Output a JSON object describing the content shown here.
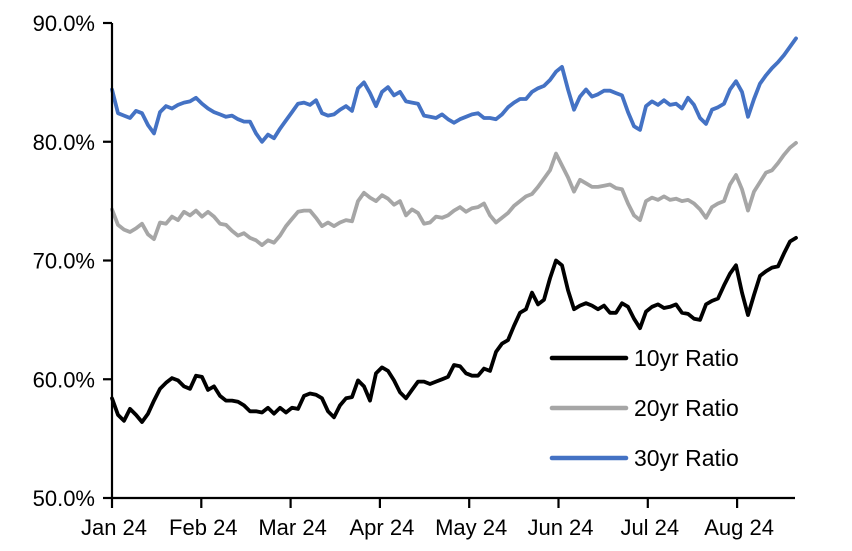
{
  "chart_data": {
    "type": "line",
    "title": "",
    "xlabel": "",
    "ylabel": "",
    "grid": false,
    "background": "#ffffff",
    "axis_color": "#000000",
    "x_axis": {
      "tick_labels": [
        "Jan 24",
        "Feb 24",
        "Mar 24",
        "Apr 24",
        "May 24",
        "Jun 24",
        "Jul 24",
        "Aug 24"
      ]
    },
    "y_axis": {
      "min": 50,
      "max": 90,
      "tick_values": [
        50,
        60,
        70,
        80,
        90
      ],
      "tick_labels": [
        "50.0%",
        "60.0%",
        "70.0%",
        "80.0%",
        "90.0%"
      ]
    },
    "legend": {
      "position": "inside-right-lower",
      "items": [
        {
          "label": "10yr Ratio",
          "color": "#000000"
        },
        {
          "label": "20yr Ratio",
          "color": "#A6A6A6"
        },
        {
          "label": "30yr Ratio",
          "color": "#4472C4"
        }
      ]
    },
    "series": [
      {
        "name": "10yr Ratio",
        "color": "#000000",
        "values": [
          58.4,
          57.0,
          56.5,
          57.5,
          57.0,
          56.4,
          57.1,
          58.2,
          59.2,
          59.7,
          60.1,
          59.9,
          59.4,
          59.2,
          60.3,
          60.2,
          59.1,
          59.4,
          58.6,
          58.2,
          58.2,
          58.1,
          57.8,
          57.3,
          57.3,
          57.2,
          57.6,
          57.1,
          57.6,
          57.2,
          57.6,
          57.5,
          58.6,
          58.8,
          58.7,
          58.4,
          57.3,
          56.8,
          57.8,
          58.4,
          58.5,
          59.9,
          59.4,
          58.2,
          60.5,
          61.0,
          60.7,
          59.9,
          58.9,
          58.4,
          59.1,
          59.8,
          59.8,
          59.6,
          59.8,
          60.0,
          60.2,
          61.2,
          61.1,
          60.5,
          60.3,
          60.3,
          60.9,
          60.7,
          62.3,
          63.0,
          63.3,
          64.5,
          65.6,
          65.9,
          67.3,
          66.3,
          66.7,
          68.5,
          70.0,
          69.6,
          67.5,
          65.9,
          66.2,
          66.4,
          66.2,
          65.9,
          66.2,
          65.6,
          65.6,
          66.4,
          66.1,
          65.1,
          64.3,
          65.7,
          66.1,
          66.3,
          66.0,
          66.1,
          66.3,
          65.6,
          65.5,
          65.1,
          65.0,
          66.3,
          66.6,
          66.8,
          67.9,
          68.9,
          69.6,
          67.3,
          65.4,
          67.1,
          68.7,
          69.1,
          69.4,
          69.5,
          70.6,
          71.6,
          71.9
        ]
      },
      {
        "name": "20yr Ratio",
        "color": "#A6A6A6",
        "values": [
          74.3,
          73.0,
          72.6,
          72.4,
          72.7,
          73.1,
          72.2,
          71.8,
          73.2,
          73.1,
          73.7,
          73.4,
          74.1,
          73.8,
          74.2,
          73.7,
          74.1,
          73.7,
          73.1,
          73.0,
          72.5,
          72.1,
          72.3,
          71.9,
          71.7,
          71.3,
          71.7,
          71.5,
          72.1,
          72.9,
          73.5,
          74.1,
          74.2,
          74.2,
          73.6,
          72.9,
          73.2,
          72.9,
          73.2,
          73.4,
          73.3,
          75.0,
          75.7,
          75.3,
          75.0,
          75.5,
          75.2,
          74.7,
          75.0,
          73.8,
          74.3,
          74.0,
          73.1,
          73.2,
          73.7,
          73.6,
          73.8,
          74.2,
          74.5,
          74.1,
          74.4,
          74.5,
          74.8,
          73.8,
          73.2,
          73.6,
          74.0,
          74.6,
          75.0,
          75.4,
          75.6,
          76.2,
          76.9,
          77.6,
          79.0,
          78.0,
          77.0,
          75.8,
          76.8,
          76.5,
          76.2,
          76.2,
          76.3,
          76.4,
          76.1,
          76.0,
          74.8,
          73.8,
          73.4,
          75.0,
          75.3,
          75.1,
          75.4,
          75.1,
          75.2,
          75.0,
          75.1,
          74.8,
          74.3,
          73.6,
          74.5,
          74.8,
          75.0,
          76.4,
          77.2,
          76.0,
          74.2,
          75.8,
          76.6,
          77.4,
          77.6,
          78.2,
          78.9,
          79.5,
          79.9
        ]
      },
      {
        "name": "30yr Ratio",
        "color": "#4472C4",
        "values": [
          84.4,
          82.4,
          82.2,
          82.0,
          82.6,
          82.4,
          81.4,
          80.7,
          82.5,
          83.0,
          82.8,
          83.1,
          83.3,
          83.4,
          83.7,
          83.2,
          82.8,
          82.5,
          82.3,
          82.1,
          82.2,
          81.9,
          81.7,
          81.7,
          80.7,
          80.0,
          80.6,
          80.3,
          81.1,
          81.8,
          82.5,
          83.2,
          83.3,
          83.1,
          83.5,
          82.4,
          82.2,
          82.3,
          82.7,
          83.0,
          82.6,
          84.5,
          85.0,
          84.1,
          83.0,
          84.2,
          84.6,
          83.9,
          84.2,
          83.4,
          83.3,
          83.2,
          82.2,
          82.1,
          82.0,
          82.3,
          81.9,
          81.6,
          81.9,
          82.1,
          82.3,
          82.4,
          82.0,
          82.0,
          81.9,
          82.3,
          82.9,
          83.3,
          83.6,
          83.6,
          84.2,
          84.5,
          84.7,
          85.2,
          85.9,
          86.3,
          84.4,
          82.7,
          83.8,
          84.4,
          83.8,
          84.0,
          84.3,
          84.3,
          84.1,
          83.9,
          82.5,
          81.3,
          81.0,
          83.0,
          83.4,
          83.1,
          83.5,
          83.1,
          83.2,
          82.8,
          83.7,
          83.1,
          82.0,
          81.5,
          82.7,
          82.9,
          83.2,
          84.4,
          85.1,
          84.2,
          82.1,
          83.6,
          84.9,
          85.6,
          86.2,
          86.7,
          87.3,
          88.0,
          88.7
        ]
      }
    ]
  }
}
